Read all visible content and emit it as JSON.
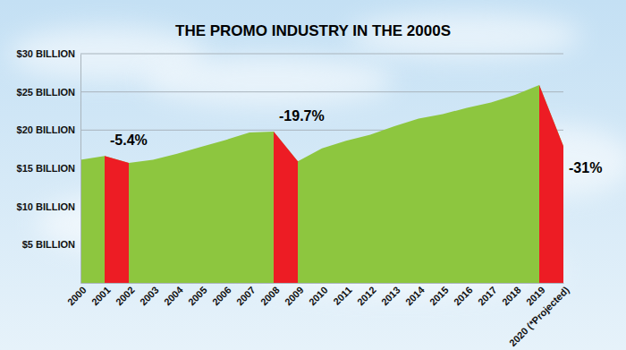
{
  "chart_data": {
    "type": "area",
    "title": "THE PROMO INDUSTRY IN THE 2000S",
    "categories": [
      "2000",
      "2001",
      "2002",
      "2003",
      "2004",
      "2005",
      "2006",
      "2007",
      "2008",
      "2009",
      "2010",
      "2011",
      "2012",
      "2013",
      "2014",
      "2015",
      "2016",
      "2017",
      "2018",
      "2019",
      "2020 (*Projected)"
    ],
    "values": [
      16.1,
      16.6,
      15.7,
      16.1,
      16.9,
      17.8,
      18.7,
      19.7,
      19.8,
      15.9,
      17.6,
      18.6,
      19.4,
      20.5,
      21.5,
      22.1,
      22.9,
      23.6,
      24.6,
      25.9,
      17.9
    ],
    "color": "#8dc63f",
    "ylim": [
      0,
      30
    ],
    "yticks": [
      {
        "value": 5,
        "label": "$5 BILLION"
      },
      {
        "value": 10,
        "label": "$10 BILLION"
      },
      {
        "value": 15,
        "label": "$15 BILLION"
      },
      {
        "value": 20,
        "label": "$20 BILLION"
      },
      {
        "value": 25,
        "label": "$25 BILLION"
      },
      {
        "value": 30,
        "label": "$30 BILLION"
      }
    ],
    "grid": true,
    "annotations": [
      {
        "text": "-5.4%",
        "from": "2001",
        "to": "2002",
        "color": "#ed1c24"
      },
      {
        "text": "-19.7%",
        "from": "2008",
        "to": "2009",
        "color": "#ed1c24"
      },
      {
        "text": "-31%",
        "from": "2019",
        "to": "2020 (*Projected)",
        "color": "#ed1c24"
      }
    ]
  }
}
